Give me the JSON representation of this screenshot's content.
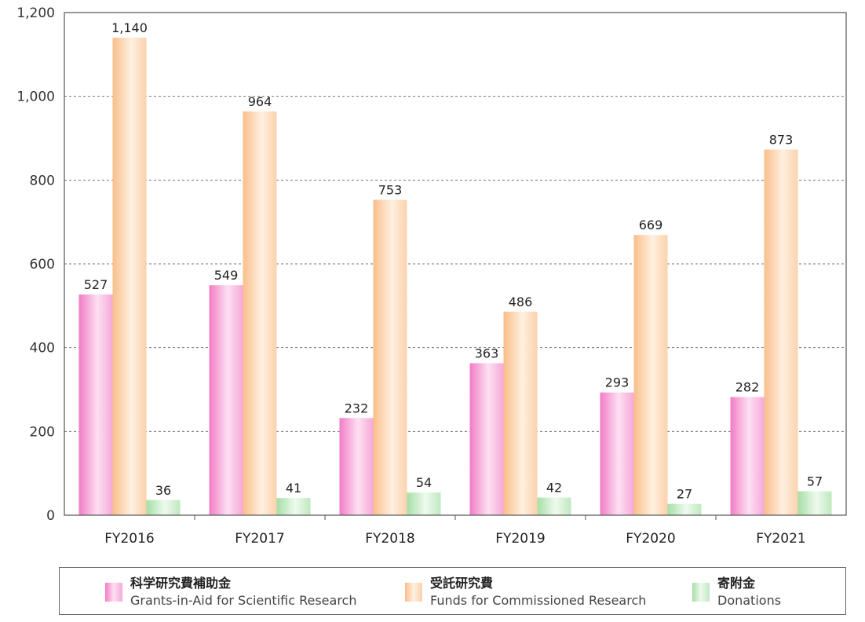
{
  "chart_data": {
    "type": "bar",
    "categories": [
      "FY2016",
      "FY2017",
      "FY2018",
      "FY2019",
      "FY2020",
      "FY2021"
    ],
    "series": [
      {
        "name": "科学研究費補助金 Grants-in-Aid for Scientific Research",
        "values": [
          527,
          549,
          232,
          363,
          293,
          282
        ],
        "color": "#f27cc6"
      },
      {
        "name": "受託研究費 Funds for Commissioned Research",
        "values": [
          1140,
          964,
          753,
          486,
          669,
          873
        ],
        "color": "#f9be8a"
      },
      {
        "name": "寄附金 Donations",
        "values": [
          36,
          41,
          54,
          42,
          27,
          57
        ],
        "color": "#9fdc9f"
      }
    ],
    "value_labels": [
      [
        "527",
        "549",
        "232",
        "363",
        "293",
        "282"
      ],
      [
        "1,140",
        "964",
        "753",
        "486",
        "669",
        "873"
      ],
      [
        "36",
        "41",
        "54",
        "42",
        "27",
        "57"
      ]
    ],
    "yticks": [
      0,
      200,
      400,
      600,
      800,
      1000,
      1200
    ],
    "ytick_labels": [
      "0",
      "200",
      "400",
      "600",
      "800",
      "1,000",
      "1,200"
    ],
    "ylim": [
      0,
      1200
    ],
    "grid": true,
    "legend_position": "bottom"
  },
  "legend": {
    "items": [
      {
        "jp": "科学研究費補助金",
        "en": "Grants-in-Aid for Scientific Research",
        "color": "#f27cc6"
      },
      {
        "jp": "受託研究費",
        "en": "Funds for Commissioned Research",
        "color": "#f9be8a"
      },
      {
        "jp": "寄附金",
        "en": "Donations",
        "color": "#9fdc9f"
      }
    ]
  }
}
